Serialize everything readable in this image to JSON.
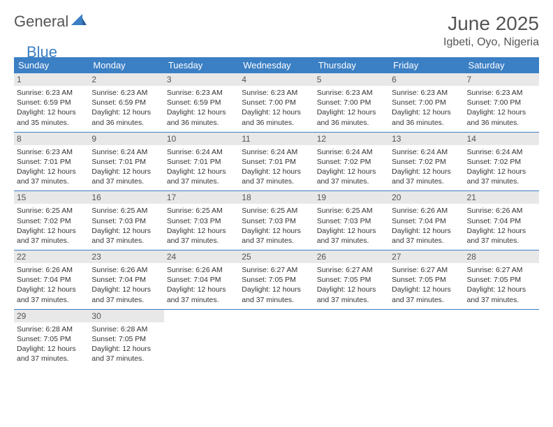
{
  "logo": {
    "text1": "General",
    "text2": "Blue"
  },
  "title": "June 2025",
  "location": "Igbeti, Oyo, Nigeria",
  "colors": {
    "header_bg": "#3b7fc4",
    "header_text": "#ffffff",
    "daynum_bg": "#e8e8e8",
    "text": "#333333",
    "title_text": "#555555",
    "week_divider": "#3b7fc4",
    "background": "#ffffff"
  },
  "dayNames": [
    "Sunday",
    "Monday",
    "Tuesday",
    "Wednesday",
    "Thursday",
    "Friday",
    "Saturday"
  ],
  "days": [
    {
      "n": 1,
      "sr": "6:23 AM",
      "ss": "6:59 PM",
      "dl": "12 hours and 35 minutes."
    },
    {
      "n": 2,
      "sr": "6:23 AM",
      "ss": "6:59 PM",
      "dl": "12 hours and 36 minutes."
    },
    {
      "n": 3,
      "sr": "6:23 AM",
      "ss": "6:59 PM",
      "dl": "12 hours and 36 minutes."
    },
    {
      "n": 4,
      "sr": "6:23 AM",
      "ss": "7:00 PM",
      "dl": "12 hours and 36 minutes."
    },
    {
      "n": 5,
      "sr": "6:23 AM",
      "ss": "7:00 PM",
      "dl": "12 hours and 36 minutes."
    },
    {
      "n": 6,
      "sr": "6:23 AM",
      "ss": "7:00 PM",
      "dl": "12 hours and 36 minutes."
    },
    {
      "n": 7,
      "sr": "6:23 AM",
      "ss": "7:00 PM",
      "dl": "12 hours and 36 minutes."
    },
    {
      "n": 8,
      "sr": "6:23 AM",
      "ss": "7:01 PM",
      "dl": "12 hours and 37 minutes."
    },
    {
      "n": 9,
      "sr": "6:24 AM",
      "ss": "7:01 PM",
      "dl": "12 hours and 37 minutes."
    },
    {
      "n": 10,
      "sr": "6:24 AM",
      "ss": "7:01 PM",
      "dl": "12 hours and 37 minutes."
    },
    {
      "n": 11,
      "sr": "6:24 AM",
      "ss": "7:01 PM",
      "dl": "12 hours and 37 minutes."
    },
    {
      "n": 12,
      "sr": "6:24 AM",
      "ss": "7:02 PM",
      "dl": "12 hours and 37 minutes."
    },
    {
      "n": 13,
      "sr": "6:24 AM",
      "ss": "7:02 PM",
      "dl": "12 hours and 37 minutes."
    },
    {
      "n": 14,
      "sr": "6:24 AM",
      "ss": "7:02 PM",
      "dl": "12 hours and 37 minutes."
    },
    {
      "n": 15,
      "sr": "6:25 AM",
      "ss": "7:02 PM",
      "dl": "12 hours and 37 minutes."
    },
    {
      "n": 16,
      "sr": "6:25 AM",
      "ss": "7:03 PM",
      "dl": "12 hours and 37 minutes."
    },
    {
      "n": 17,
      "sr": "6:25 AM",
      "ss": "7:03 PM",
      "dl": "12 hours and 37 minutes."
    },
    {
      "n": 18,
      "sr": "6:25 AM",
      "ss": "7:03 PM",
      "dl": "12 hours and 37 minutes."
    },
    {
      "n": 19,
      "sr": "6:25 AM",
      "ss": "7:03 PM",
      "dl": "12 hours and 37 minutes."
    },
    {
      "n": 20,
      "sr": "6:26 AM",
      "ss": "7:04 PM",
      "dl": "12 hours and 37 minutes."
    },
    {
      "n": 21,
      "sr": "6:26 AM",
      "ss": "7:04 PM",
      "dl": "12 hours and 37 minutes."
    },
    {
      "n": 22,
      "sr": "6:26 AM",
      "ss": "7:04 PM",
      "dl": "12 hours and 37 minutes."
    },
    {
      "n": 23,
      "sr": "6:26 AM",
      "ss": "7:04 PM",
      "dl": "12 hours and 37 minutes."
    },
    {
      "n": 24,
      "sr": "6:26 AM",
      "ss": "7:04 PM",
      "dl": "12 hours and 37 minutes."
    },
    {
      "n": 25,
      "sr": "6:27 AM",
      "ss": "7:05 PM",
      "dl": "12 hours and 37 minutes."
    },
    {
      "n": 26,
      "sr": "6:27 AM",
      "ss": "7:05 PM",
      "dl": "12 hours and 37 minutes."
    },
    {
      "n": 27,
      "sr": "6:27 AM",
      "ss": "7:05 PM",
      "dl": "12 hours and 37 minutes."
    },
    {
      "n": 28,
      "sr": "6:27 AM",
      "ss": "7:05 PM",
      "dl": "12 hours and 37 minutes."
    },
    {
      "n": 29,
      "sr": "6:28 AM",
      "ss": "7:05 PM",
      "dl": "12 hours and 37 minutes."
    },
    {
      "n": 30,
      "sr": "6:28 AM",
      "ss": "7:05 PM",
      "dl": "12 hours and 37 minutes."
    }
  ],
  "labels": {
    "sunrise": "Sunrise:",
    "sunset": "Sunset:",
    "daylight": "Daylight:"
  }
}
